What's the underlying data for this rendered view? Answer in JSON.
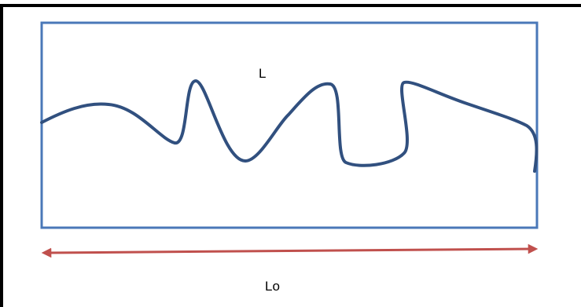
{
  "labels": {
    "curve": "L",
    "span": "Lo"
  },
  "colors": {
    "frame_outer": "#000000",
    "box": "#4a78b8",
    "curve": "#31507f",
    "arrow": "#c0504d",
    "background": "#ffffff"
  }
}
